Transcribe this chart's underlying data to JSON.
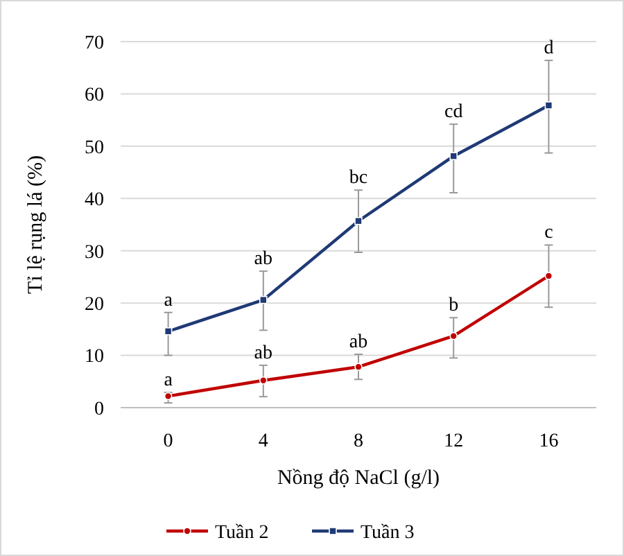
{
  "chart_data": {
    "type": "line",
    "xlabel": "Nồng độ NaCl (g/l)",
    "ylabel": "Tỉ lệ rụng lá (%)",
    "categories": [
      "0",
      "4",
      "8",
      "12",
      "16"
    ],
    "ylim": [
      0,
      70
    ],
    "yticks": [
      0,
      10,
      20,
      30,
      40,
      50,
      60,
      70
    ],
    "grid": "y",
    "legend": "bottom",
    "line_style": "solid",
    "series": [
      {
        "name": "Tuần 2",
        "color": "#c00000",
        "marker": "circle",
        "values": [
          2.2,
          5.2,
          7.8,
          13.7,
          25.2
        ],
        "errors": [
          [
            0.9,
            2.9
          ],
          [
            2.1,
            8.1
          ],
          [
            5.4,
            10.2
          ],
          [
            9.5,
            17.2
          ],
          [
            19.2,
            31.1
          ]
        ]
      },
      {
        "name": "Tuần 3",
        "color": "#1f3a75",
        "marker": "square",
        "values": [
          14.6,
          20.6,
          35.7,
          48.1,
          57.8
        ],
        "errors": [
          [
            10.0,
            18.2
          ],
          [
            14.8,
            26.1
          ],
          [
            29.7,
            41.6
          ],
          [
            41.1,
            54.2
          ],
          [
            48.7,
            66.4
          ]
        ]
      }
    ],
    "annotations": [
      {
        "text": "a",
        "x": "0",
        "y": 2.9
      },
      {
        "text": "ab",
        "x": "4",
        "y": 8.1
      },
      {
        "text": "ab",
        "x": "8",
        "y": 10.2
      },
      {
        "text": "b",
        "x": "12",
        "y": 17.2
      },
      {
        "text": "c",
        "x": "16",
        "y": 31.1
      },
      {
        "text": "a",
        "x": "0",
        "y": 18.2
      },
      {
        "text": "ab",
        "x": "4",
        "y": 26.1
      },
      {
        "text": "bc",
        "x": "8",
        "y": 41.6
      },
      {
        "text": "cd",
        "x": "12",
        "y": 54.2
      },
      {
        "text": "d",
        "x": "16",
        "y": 66.4
      }
    ]
  }
}
